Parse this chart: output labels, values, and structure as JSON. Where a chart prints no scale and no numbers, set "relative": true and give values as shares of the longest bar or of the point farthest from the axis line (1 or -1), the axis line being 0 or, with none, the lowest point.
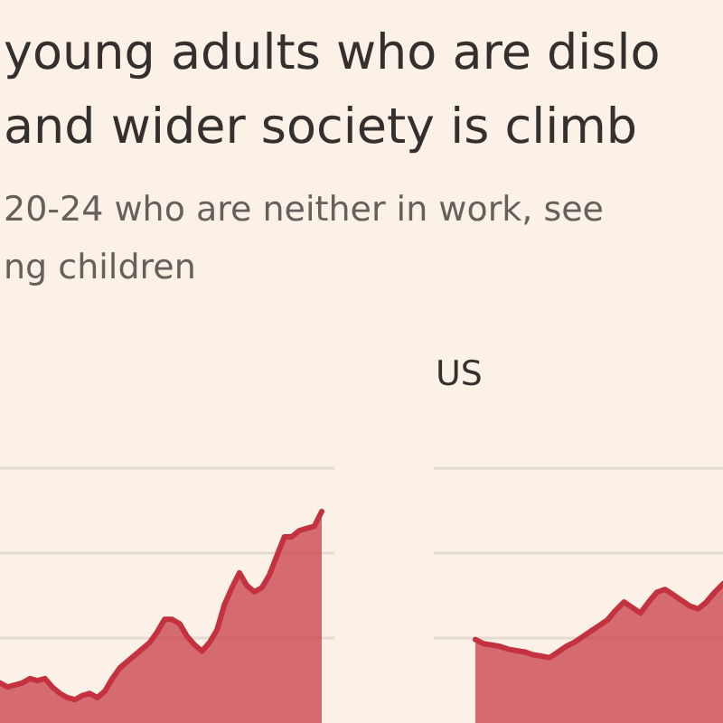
{
  "chart_data": [
    {
      "type": "area",
      "title": "young adults who are dislo\nand wider society is climb",
      "subtitle": "20-24 who are neither in work, see\nng children",
      "relative": true,
      "ref_lines": [
        {
          "axis": "y",
          "value": 0.402,
          "color": "#e3dcd3"
        },
        {
          "axis": "y",
          "value": 0.803,
          "color": "#e3dcd3"
        },
        {
          "axis": "y",
          "value": 1.205,
          "color": "#e3dcd3"
        }
      ],
      "categories": [
        null,
        null,
        null,
        null,
        null,
        null,
        null,
        null,
        null,
        null,
        null,
        null,
        null,
        null,
        null,
        null,
        null,
        null,
        null,
        null,
        null,
        null,
        null,
        null,
        null,
        null,
        null,
        null,
        null,
        null,
        null,
        null,
        null,
        null,
        null,
        null,
        null,
        null,
        null,
        null,
        null,
        null,
        null,
        null
      ],
      "series": [
        {
          "color": "#c4323f",
          "values": [
            0.19,
            0.17,
            0.18,
            0.19,
            0.21,
            0.2,
            0.21,
            0.17,
            0.14,
            0.12,
            0.11,
            0.13,
            0.14,
            0.12,
            0.15,
            0.21,
            0.26,
            0.29,
            0.32,
            0.35,
            0.38,
            0.43,
            0.49,
            0.49,
            0.47,
            0.41,
            0.37,
            0.34,
            0.38,
            0.44,
            0.56,
            0.64,
            0.71,
            0.65,
            0.62,
            0.64,
            0.7,
            0.79,
            0.88,
            0.88,
            0.91,
            0.92,
            0.93,
            1
          ]
        }
      ]
    },
    {
      "type": "area",
      "title": "US",
      "relative": true,
      "ref_lines": [
        {
          "axis": "y",
          "value": 0.61,
          "color": "#e3dcd3"
        },
        {
          "axis": "y",
          "value": 1.22,
          "color": "#e3dcd3"
        },
        {
          "axis": "y",
          "value": 1.83,
          "color": "#e3dcd3"
        }
      ],
      "categories": [
        null,
        null,
        null,
        null,
        null,
        null,
        null,
        null,
        null,
        null,
        null,
        null,
        null,
        null,
        null,
        null,
        null,
        null,
        null,
        null,
        null,
        null,
        null,
        null,
        null,
        null,
        null,
        null,
        null,
        null,
        null
      ],
      "series": [
        {
          "color": "#c4323f",
          "values": [
            0.6,
            0.57,
            0.56,
            0.55,
            0.53,
            0.52,
            0.51,
            0.49,
            0.48,
            0.47,
            0.51,
            0.55,
            0.58,
            0.62,
            0.66,
            0.7,
            0.74,
            0.81,
            0.87,
            0.83,
            0.79,
            0.87,
            0.94,
            0.96,
            0.92,
            0.88,
            0.84,
            0.82,
            0.87,
            0.94,
            1
          ]
        }
      ]
    }
  ]
}
